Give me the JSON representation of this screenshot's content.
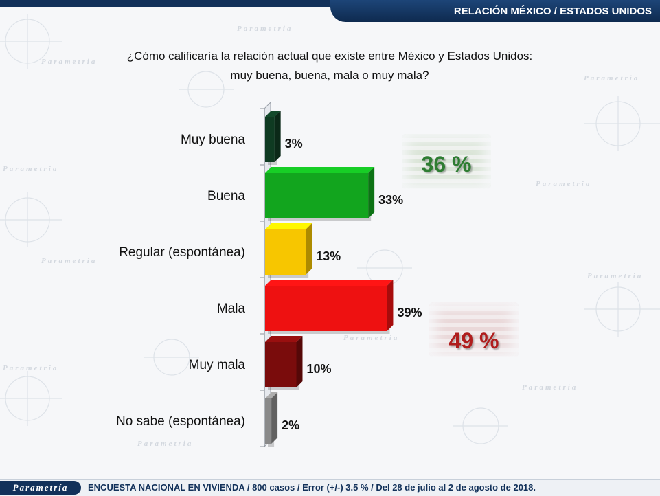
{
  "header": {
    "title": "RELACIÓN MÉXICO / ESTADOS UNIDOS"
  },
  "question": {
    "line1": "¿Cómo calificaría la relación actual que existe entre México y Estados Unidos:",
    "line2": "muy buena, buena, mala o muy mala?"
  },
  "chart_data": {
    "type": "bar",
    "orientation": "horizontal",
    "categories": [
      "Muy buena",
      "Buena",
      "Regular (espontánea)",
      "Mala",
      "Muy mala",
      "No sabe (espontánea)"
    ],
    "values": [
      3,
      33,
      13,
      39,
      10,
      2
    ],
    "value_labels": [
      "3%",
      "33%",
      "13%",
      "39%",
      "10%",
      "2%"
    ],
    "colors": [
      "#0f3b22",
      "#12a51e",
      "#f7c600",
      "#ee1111",
      "#7a0c0c",
      "#8a8a8a"
    ],
    "xlim": [
      0,
      45
    ],
    "grid": false,
    "style": "3d"
  },
  "summaries": {
    "positive": {
      "text": "36 %",
      "color": "#2e7d32"
    },
    "negative": {
      "text": "49 %",
      "color": "#b01d1d"
    }
  },
  "footer": {
    "logo": "Parametría",
    "text": "ENCUESTA NACIONAL EN VIVIENDA / 800 casos / Error (+/-) 3.5 % / Del 28 de julio al 2 de agosto de 2018."
  }
}
